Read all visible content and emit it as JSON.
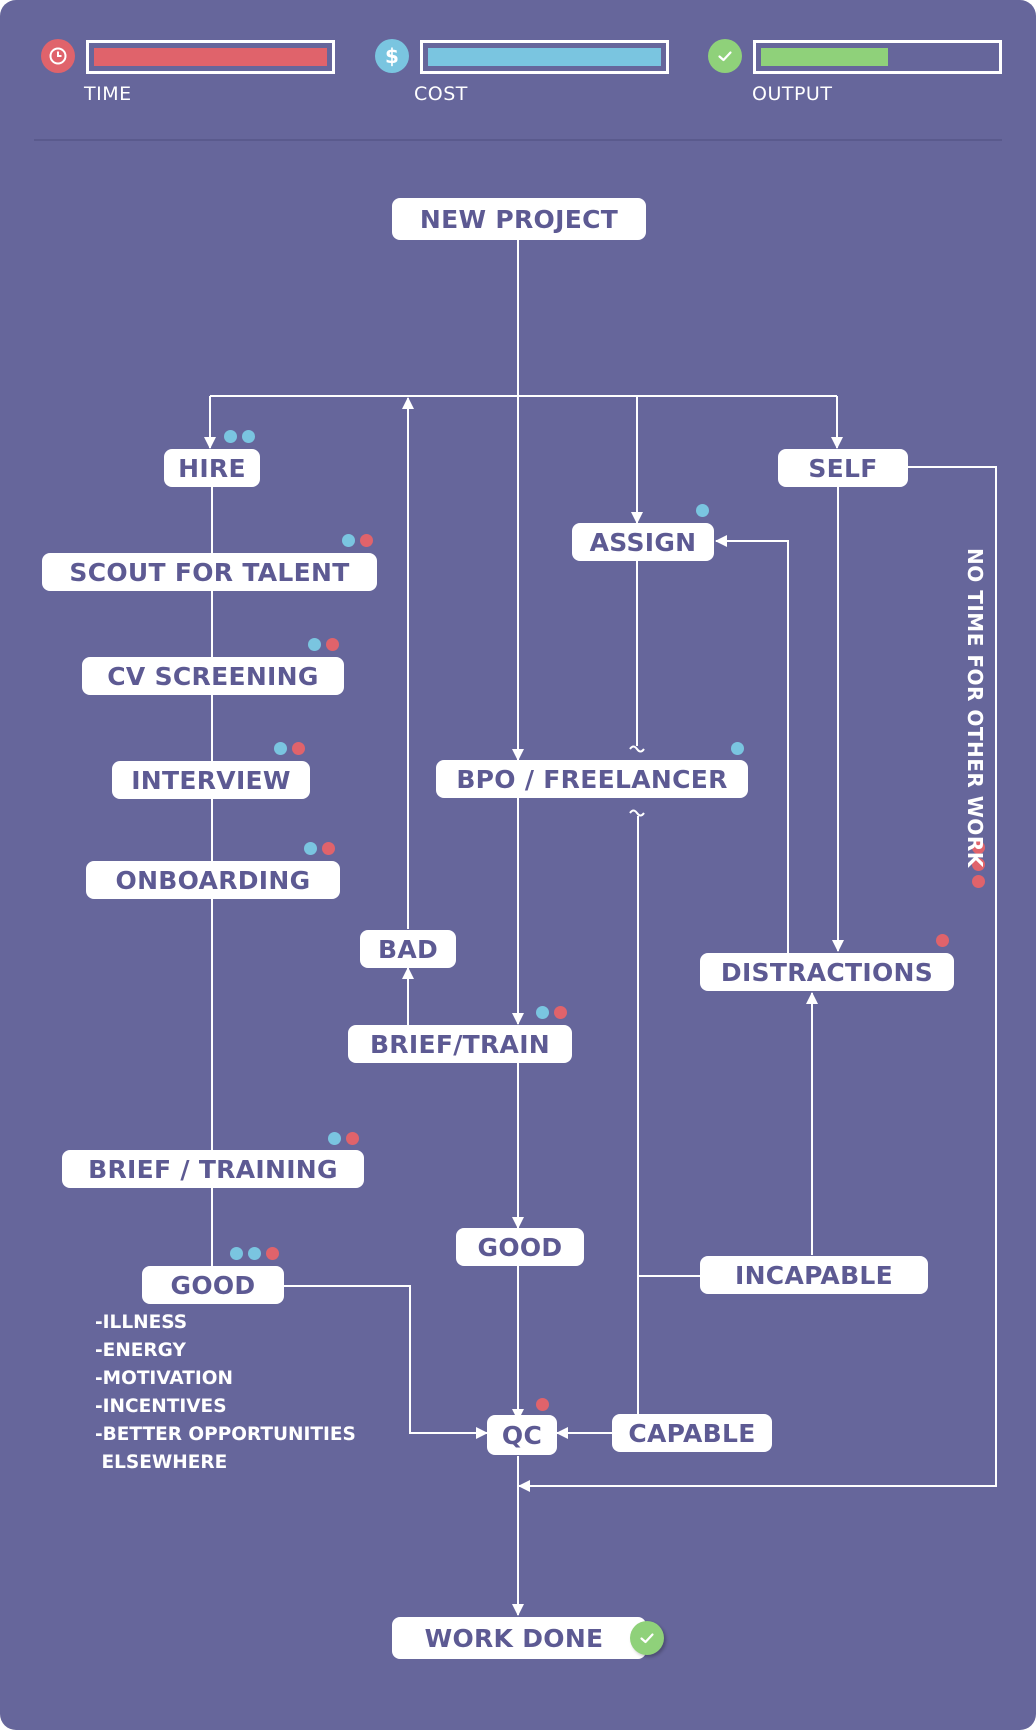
{
  "colors": {
    "background": "#66669b",
    "time": "#e0636b",
    "cost": "#7ac5e0",
    "output": "#8fd17a",
    "node_text": "#5d5a93"
  },
  "legend": {
    "time": {
      "label": "TIME",
      "icon": "clock-icon",
      "level": 1.0
    },
    "cost": {
      "label": "COST",
      "icon": "dollar-icon",
      "level": 1.0
    },
    "output": {
      "label": "OUTPUT",
      "icon": "check-icon",
      "level": 0.5
    }
  },
  "nodes": {
    "new_project": "NEW PROJECT",
    "hire": "HIRE",
    "self": "SELF",
    "assign": "ASSIGN",
    "scout_for_talent": "SCOUT FOR TALENT",
    "cv_screening": "CV SCREENING",
    "interview": "INTERVIEW",
    "bpo_freelancer": "BPO / FREELANCER",
    "onboarding": "ONBOARDING",
    "bad": "BAD",
    "distractions": "DISTRACTIONS",
    "brief_train": "BRIEF/TRAIN",
    "brief_training": "BRIEF / TRAINING",
    "good_center": "GOOD",
    "incapable": "INCAPABLE",
    "good_left": "GOOD",
    "qc": "QC",
    "capable": "CAPABLE",
    "work_done": "WORK DONE"
  },
  "reasons": [
    "-ILLNESS",
    "-ENERGY",
    "-MOTIVATION",
    "-INCENTIVES",
    "-BETTER OPPORTUNITIES",
    " ELSEWHERE"
  ],
  "side_note": "NO TIME FOR OTHER WORK"
}
